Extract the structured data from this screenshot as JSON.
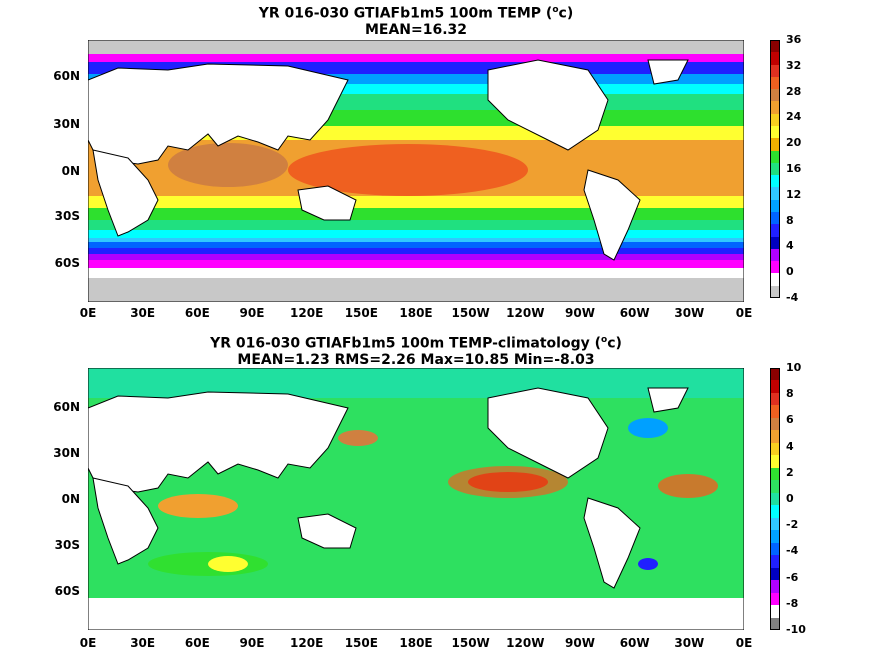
{
  "top": {
    "title_line1": "YR 016-030 GTIAFb1m5 100m TEMP (",
    "title_sup": "o",
    "title_unit_tail": "c)",
    "title_line2": "MEAN=16.32",
    "lat_labels": [
      "60N",
      "30N",
      "0N",
      "30S",
      "60S"
    ],
    "lon_labels": [
      "0E",
      "30E",
      "60E",
      "90E",
      "120E",
      "150E",
      "180E",
      "150W",
      "120W",
      "90W",
      "60W",
      "30W",
      "0E"
    ],
    "colorbar": {
      "labels": [
        "36",
        "32",
        "28",
        "24",
        "20",
        "16",
        "12",
        "8",
        "4",
        "0",
        "-4"
      ],
      "colors": [
        "#8b0000",
        "#c00000",
        "#e03020",
        "#ef6020",
        "#d08040",
        "#f0a030",
        "#f8d020",
        "#ffff30",
        "#f0b000",
        "#2ee02e",
        "#20e080",
        "#00ffff",
        "#30c8ff",
        "#00a0ff",
        "#0064ff",
        "#2020ff",
        "#0000c0",
        "#b000ff",
        "#ff00ff",
        "#ffffff",
        "#c8c8c8"
      ]
    }
  },
  "bottom": {
    "title_line1": "YR 016-030 GTIAFb1m5 100m TEMP-climatology (",
    "title_sup": "o",
    "title_unit_tail": "c)",
    "title_line2": "MEAN=1.23   RMS=2.26   Max=10.85   Min=-8.03",
    "lat_labels": [
      "60N",
      "30N",
      "0N",
      "30S",
      "60S"
    ],
    "lon_labels": [
      "0E",
      "30E",
      "60E",
      "90E",
      "120E",
      "150E",
      "180E",
      "150W",
      "120W",
      "90W",
      "60W",
      "30W",
      "0E"
    ],
    "colorbar": {
      "labels": [
        "10",
        "8",
        "6",
        "4",
        "2",
        "0",
        "-2",
        "-4",
        "-6",
        "-8",
        "-10"
      ],
      "colors": [
        "#8b0000",
        "#c00000",
        "#e03020",
        "#ef6020",
        "#d08040",
        "#f0a030",
        "#f8d020",
        "#ffff30",
        "#30e030",
        "#2ee060",
        "#20e0a0",
        "#00ffff",
        "#30c8ff",
        "#00a0ff",
        "#0064ff",
        "#2020ff",
        "#0000c0",
        "#b000ff",
        "#ff00ff",
        "#ffffff",
        "#808080"
      ]
    }
  }
}
